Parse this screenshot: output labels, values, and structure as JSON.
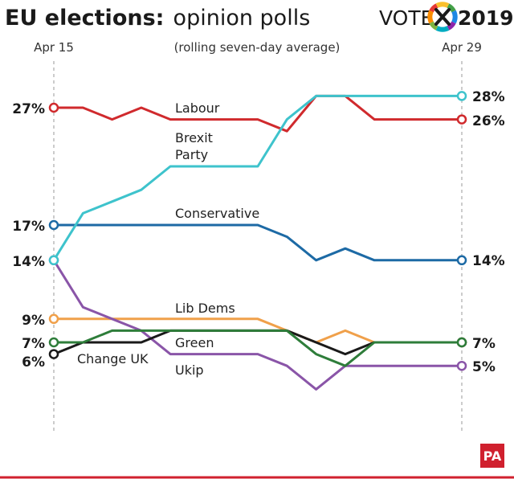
{
  "header": {
    "title_bold": "EU elections:",
    "title_rest": "opinion polls",
    "logo_vote": "VOTE",
    "logo_year": "2019",
    "credit": "PA"
  },
  "chart_data": {
    "type": "line",
    "title": "EU elections: opinion polls",
    "subtitle": "(rolling seven-day average)",
    "x_start_label": "Apr 15",
    "x_end_label": "Apr 29",
    "x": [
      15,
      16,
      17,
      18,
      19,
      20,
      21,
      22,
      23,
      24,
      25,
      26,
      27,
      28,
      29
    ],
    "ylabel": "",
    "ylim": [
      0,
      30
    ],
    "grid": false,
    "series": [
      {
        "name": "Labour",
        "label": "Labour",
        "color": "#d02a2d",
        "values": [
          27,
          27,
          26,
          27,
          26,
          26,
          26,
          26,
          25,
          28,
          28,
          26,
          26,
          26,
          26
        ],
        "start_label": "27%",
        "end_label": "26%"
      },
      {
        "name": "Brexit Party",
        "label_lines": [
          "Brexit",
          "Party"
        ],
        "color": "#3ec3cc",
        "values": [
          14,
          18,
          19,
          20,
          22,
          22,
          22,
          22,
          26,
          28,
          28,
          28,
          28,
          28,
          28
        ],
        "start_label": "",
        "end_label": "28%"
      },
      {
        "name": "Conservative",
        "label": "Conservative",
        "color": "#1d6aa5",
        "values": [
          17,
          17,
          17,
          17,
          17,
          17,
          17,
          17,
          16,
          14,
          15,
          14,
          14,
          14,
          14
        ],
        "start_label": "17%",
        "end_label": "14%"
      },
      {
        "name": "Lib Dems",
        "label": "Lib Dems",
        "color": "#f0a04a",
        "values": [
          9,
          9,
          9,
          9,
          9,
          9,
          9,
          9,
          8,
          7,
          8,
          7,
          7,
          7,
          7
        ],
        "start_label": "9%",
        "end_label": ""
      },
      {
        "name": "Green",
        "label": "Green",
        "color": "#2e7d3a",
        "values": [
          7,
          7,
          8,
          8,
          8,
          8,
          8,
          8,
          8,
          6,
          5,
          7,
          7,
          7,
          7
        ],
        "start_label": "7%",
        "end_label": ""
      },
      {
        "name": "Change UK",
        "label": "Change UK",
        "color": "#1a1a1a",
        "values": [
          6,
          7,
          7,
          7,
          8,
          8,
          8,
          8,
          8,
          7,
          6,
          7,
          7,
          7,
          7
        ],
        "start_label": "6%",
        "end_label": "7%"
      },
      {
        "name": "Ukip",
        "label": "Ukip",
        "color": "#8a55a8",
        "values": [
          14,
          10,
          9,
          8,
          6,
          6,
          6,
          6,
          5,
          3,
          5,
          5,
          5,
          5,
          5
        ],
        "start_label": "14%",
        "end_label": "5%"
      }
    ]
  }
}
